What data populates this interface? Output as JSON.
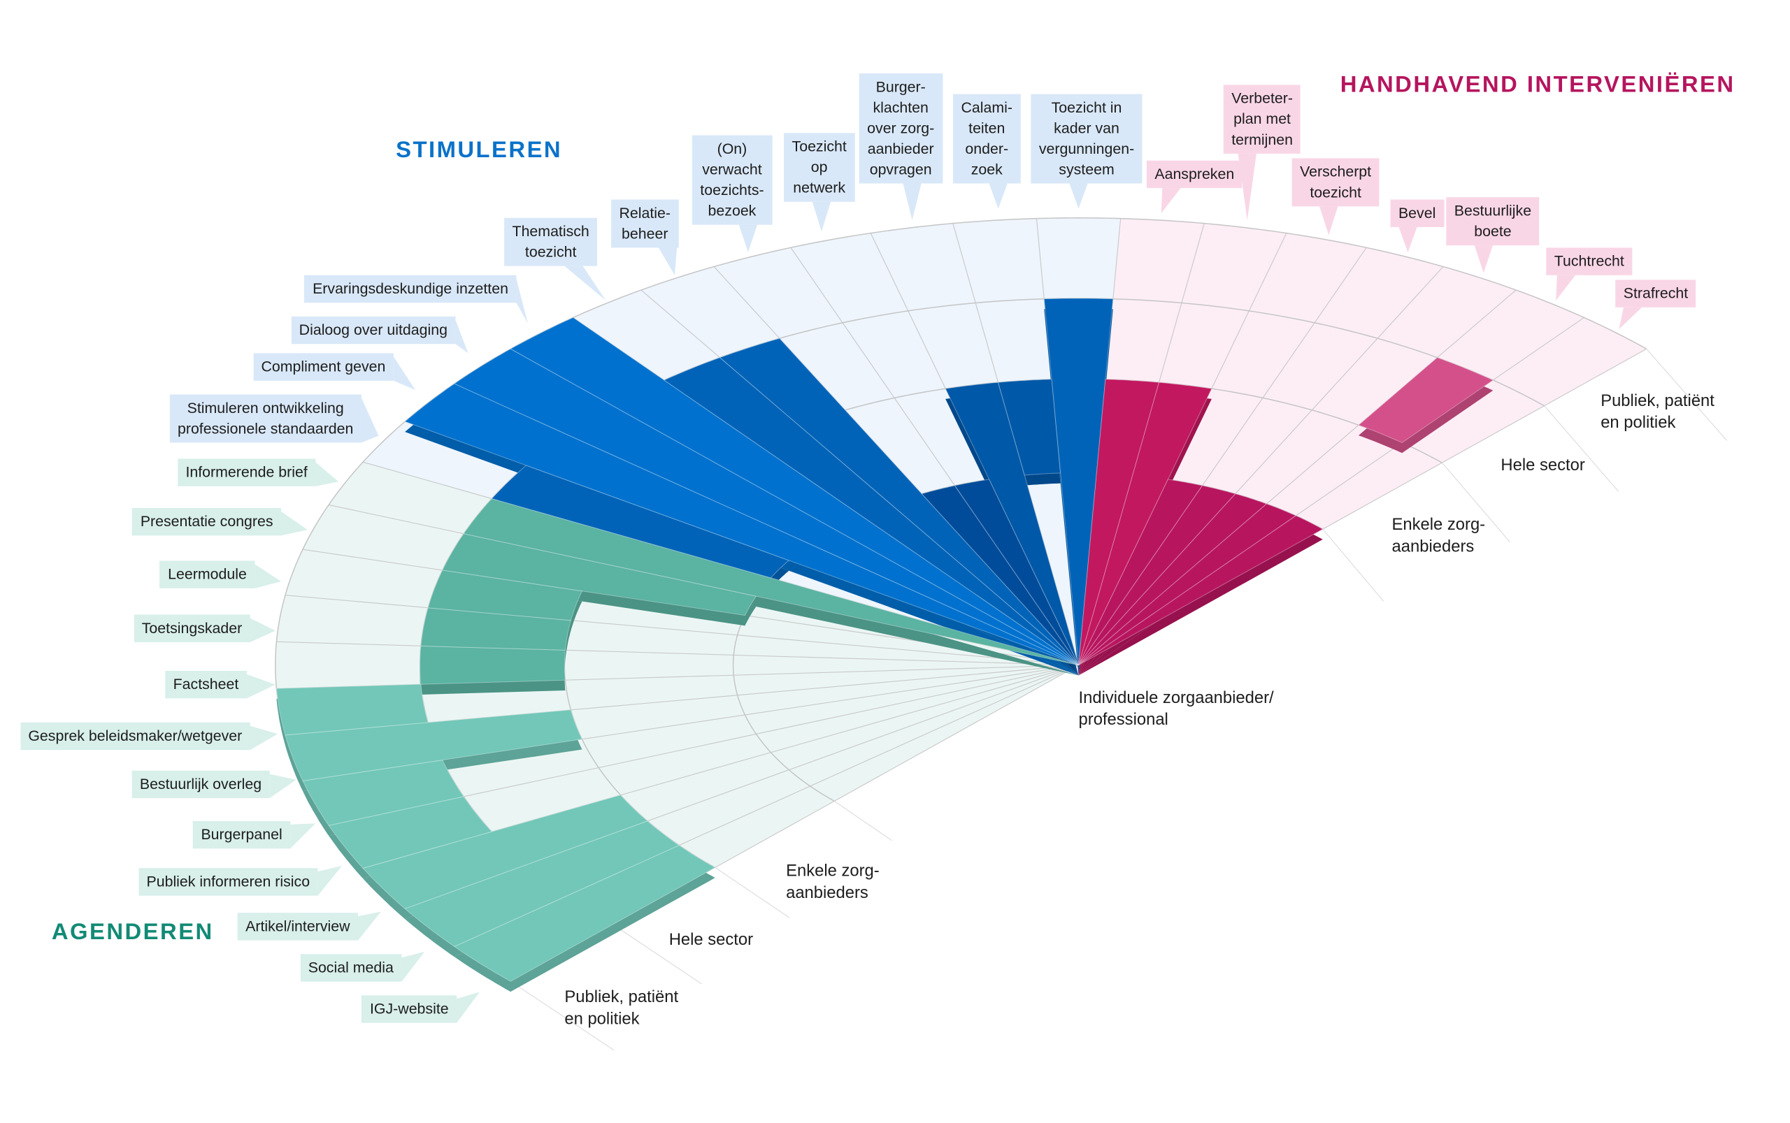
{
  "headers": {
    "stimuleren": "STIMULEREN",
    "handhavend": "HANDHAVEND INTERVENIËREN",
    "agenderen": "AGENDEREN"
  },
  "rings": {
    "individueel": [
      "Individuele zorgaanbieder/",
      "professional"
    ],
    "enkele": [
      "Enkele zorg-",
      "aanbieders"
    ],
    "hele_sector": [
      "Hele sector"
    ],
    "publiek": [
      "Publiek, patiënt",
      "en politiek"
    ]
  },
  "colors": {
    "agenderen": {
      "text": "#128a75",
      "bg": "#ebf6f4",
      "bands": [
        "#2f8c76",
        "#45a08b",
        "#5bb3a2",
        "#72c7b8"
      ]
    },
    "stimuleren": {
      "text": "#0a72c9",
      "bg": "#eef5fd",
      "bands": [
        "#004c9a",
        "#0058a8",
        "#0063b8",
        "#0071ce"
      ]
    },
    "handhavend": {
      "text": "#b5155e",
      "bg": "#fdeef6",
      "bands": [
        "#b8155f",
        "#c2185f",
        "#c2185f",
        "#c2185f"
      ],
      "accent": "#d4508a"
    }
  },
  "items": [
    {
      "lines": [
        "IGJ-website"
      ],
      "group": "agenderen",
      "levels": [
        [
          2,
          4
        ]
      ]
    },
    {
      "lines": [
        "Social media"
      ],
      "group": "agenderen",
      "levels": [
        [
          2,
          4
        ]
      ]
    },
    {
      "lines": [
        "Artikel/interview"
      ],
      "group": "agenderen",
      "levels": [
        [
          2,
          4
        ]
      ]
    },
    {
      "lines": [
        "Publiek informeren risico"
      ],
      "group": "agenderen",
      "levels": [
        [
          3,
          4
        ]
      ]
    },
    {
      "lines": [
        "Burgerpanel"
      ],
      "group": "agenderen",
      "levels": [
        [
          3,
          4
        ]
      ]
    },
    {
      "lines": [
        "Bestuurlijk overleg"
      ],
      "group": "agenderen",
      "levels": [
        [
          2,
          4
        ]
      ]
    },
    {
      "lines": [
        "Gesprek beleidsmaker/wetgever"
      ],
      "group": "agenderen",
      "levels": [
        [
          3,
          4
        ]
      ]
    },
    {
      "lines": [
        "Factsheet"
      ],
      "group": "agenderen",
      "levels": [
        [
          2,
          3
        ]
      ]
    },
    {
      "lines": [
        "Toetsingskader"
      ],
      "group": "agenderen",
      "levels": [
        [
          2,
          3
        ]
      ]
    },
    {
      "lines": [
        "Leermodule"
      ],
      "group": "agenderen",
      "levels": [
        [
          2,
          3
        ]
      ]
    },
    {
      "lines": [
        "Presentatie congres"
      ],
      "group": "agenderen",
      "levels": [
        [
          1,
          3
        ]
      ]
    },
    {
      "lines": [
        "Informerende brief"
      ],
      "group": "agenderen",
      "levels": [
        [
          0,
          3
        ]
      ]
    },
    {
      "lines": [
        "Stimuleren ontwikkeling",
        "professionele standaarden"
      ],
      "group": "stimuleren",
      "levels": [
        [
          1,
          3
        ]
      ]
    },
    {
      "lines": [
        "Compliment geven"
      ],
      "group": "stimuleren",
      "levels": [
        [
          0,
          4
        ]
      ]
    },
    {
      "lines": [
        "Dialoog over uitdaging"
      ],
      "group": "stimuleren",
      "levels": [
        [
          0,
          4
        ]
      ]
    },
    {
      "lines": [
        "Ervaringsdeskundige inzetten"
      ],
      "group": "stimuleren",
      "levels": [
        [
          0,
          4
        ]
      ]
    },
    {
      "lines": [
        "Thematisch",
        "toezicht"
      ],
      "group": "stimuleren",
      "levels": [
        [
          0,
          3
        ]
      ]
    },
    {
      "lines": [
        "Relatie-",
        "beheer"
      ],
      "group": "stimuleren",
      "levels": [
        [
          0,
          3
        ]
      ]
    },
    {
      "lines": [
        "(On)",
        "verwacht",
        "toezichts-",
        "bezoek"
      ],
      "group": "stimuleren",
      "levels": [
        [
          0,
          1
        ]
      ]
    },
    {
      "lines": [
        "Toezicht",
        "op",
        "netwerk"
      ],
      "group": "stimuleren",
      "levels": [
        [
          0,
          1
        ]
      ]
    },
    {
      "lines": [
        "Burger-",
        "klachten",
        "over zorg-",
        "aanbieder",
        "opvragen"
      ],
      "group": "stimuleren",
      "levels": [
        [
          0,
          2
        ]
      ]
    },
    {
      "lines": [
        "Calami-",
        "teiten",
        "onder-",
        "zoek"
      ],
      "group": "stimuleren",
      "levels": [
        [
          1,
          2
        ]
      ]
    },
    {
      "lines": [
        "Toezicht in",
        "kader van",
        "vergunningen-",
        "systeem"
      ],
      "group": "stimuleren",
      "levels": [
        [
          0,
          3
        ]
      ]
    },
    {
      "lines": [
        "Aanspreken"
      ],
      "group": "handhavend",
      "levels": [
        [
          0,
          2
        ]
      ]
    },
    {
      "lines": [
        "Verbeter-",
        "plan met",
        "termijnen"
      ],
      "group": "handhavend",
      "levels": [
        [
          0,
          2
        ]
      ]
    },
    {
      "lines": [
        "Verscherpt",
        "toezicht"
      ],
      "group": "handhavend",
      "levels": [
        [
          0,
          1
        ]
      ]
    },
    {
      "lines": [
        "Bevel"
      ],
      "group": "handhavend",
      "levels": [
        [
          0,
          1
        ]
      ]
    },
    {
      "lines": [
        "Bestuurlijke",
        "boete"
      ],
      "group": "handhavend",
      "levels": [
        [
          0,
          1
        ]
      ]
    },
    {
      "lines": [
        "Tuchtrecht"
      ],
      "group": "handhavend",
      "levels": [
        [
          0,
          1
        ],
        [
          2,
          3
        ]
      ]
    },
    {
      "lines": [
        "Strafrecht"
      ],
      "group": "handhavend",
      "levels": [
        [
          0,
          1
        ]
      ]
    }
  ]
}
